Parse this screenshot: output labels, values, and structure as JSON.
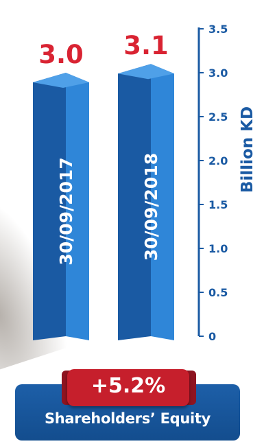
{
  "chart_data": {
    "type": "bar",
    "categories": [
      "30/09/2017",
      "30/09/2018"
    ],
    "values": [
      3.0,
      3.1
    ],
    "value_labels": [
      "3.0",
      "3.1"
    ],
    "ylabel": "Billion KD",
    "ylim": [
      0,
      3.5
    ],
    "yticks": [
      "0",
      "0.5",
      "1.0",
      "1.5",
      "2.0",
      "2.5",
      "3.0",
      "3.5"
    ],
    "grid": false,
    "bar_color": "#1f6bbf",
    "value_color": "#d92332",
    "axis_color": "#1a5aa3"
  },
  "badge": {
    "change": "+5.2%",
    "caption": "Shareholders’ Equity",
    "ribbon_color": "#c61f2c",
    "box_color": "#1a5aa3"
  }
}
